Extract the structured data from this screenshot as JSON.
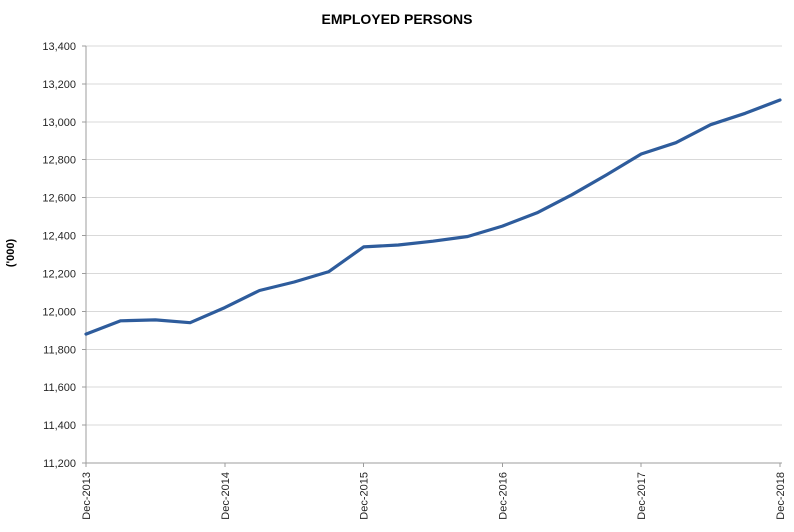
{
  "chart_data": {
    "type": "line",
    "title": "EMPLOYED PERSONS",
    "xlabel": "",
    "ylabel": "('000)",
    "x": [
      "Dec-2013",
      "Mar-2014",
      "Jun-2014",
      "Sep-2014",
      "Dec-2014",
      "Mar-2015",
      "Jun-2015",
      "Sep-2015",
      "Dec-2015",
      "Mar-2016",
      "Jun-2016",
      "Sep-2016",
      "Dec-2016",
      "Mar-2017",
      "Jun-2017",
      "Sep-2017",
      "Dec-2017",
      "Mar-2018",
      "Jun-2018",
      "Sep-2018",
      "Dec-2018"
    ],
    "series": [
      {
        "name": "Employed persons ('000)",
        "values": [
          11880,
          11950,
          11955,
          11940,
          12020,
          12110,
          12155,
          12210,
          12340,
          12350,
          12370,
          12395,
          12450,
          12520,
          12615,
          12720,
          12830,
          12890,
          12985,
          13045,
          13115
        ]
      }
    ],
    "ylim": [
      11200,
      13400
    ],
    "ytick_step": 200,
    "y_tick_labels": [
      "11,200",
      "11,400",
      "11,600",
      "11,800",
      "12,000",
      "12,200",
      "12,400",
      "12,600",
      "12,800",
      "13,000",
      "13,200",
      "13,400"
    ],
    "x_tick_labels": [
      "Dec-2013",
      "Dec-2014",
      "Dec-2015",
      "Dec-2016",
      "Dec-2017",
      "Dec-2018"
    ],
    "x_tick_indices": [
      0,
      4,
      8,
      12,
      16,
      20
    ],
    "grid": true,
    "legend": "none",
    "colors": {
      "line": "#2E5C9C",
      "grid": "#D9D9D9",
      "axis": "#9C9C9C",
      "text": "#262626",
      "title": "#000000",
      "background": "#FFFFFF"
    }
  }
}
